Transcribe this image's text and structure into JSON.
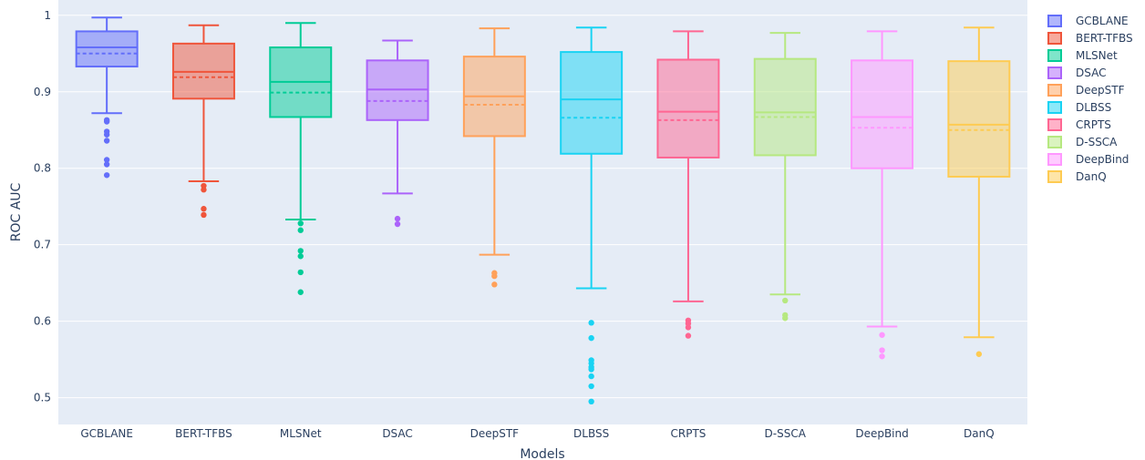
{
  "chart_data": {
    "type": "box",
    "xlabel": "Models",
    "ylabel": "ROC AUC",
    "ylim": [
      0.465,
      1.02
    ],
    "yticks": [
      0.5,
      0.6,
      0.7,
      0.8,
      0.9,
      1
    ],
    "ytick_labels": [
      "0.5",
      "0.6",
      "0.7",
      "0.8",
      "0.9",
      "1"
    ],
    "grid": true,
    "legend_position": "right",
    "mean_line": "dashed",
    "categories": [
      "GCBLANE",
      "BERT-TFBS",
      "MLSNet",
      "DSAC",
      "DeepSTF",
      "DLBSS",
      "CRPTS",
      "D-SSCA",
      "DeepBind",
      "DanQ"
    ],
    "series": [
      {
        "name": "GCBLANE",
        "color": "#636efa",
        "lowerfence": 0.872,
        "q1": 0.933,
        "median": 0.958,
        "mean": 0.95,
        "q3": 0.979,
        "upperfence": 0.997,
        "outliers": [
          0.863,
          0.861,
          0.848,
          0.844,
          0.836,
          0.811,
          0.805,
          0.791
        ]
      },
      {
        "name": "BERT-TFBS",
        "color": "#ef553b",
        "lowerfence": 0.783,
        "q1": 0.891,
        "median": 0.926,
        "mean": 0.919,
        "q3": 0.963,
        "upperfence": 0.987,
        "outliers": [
          0.777,
          0.772,
          0.747,
          0.739
        ]
      },
      {
        "name": "MLSNet",
        "color": "#00cc96",
        "lowerfence": 0.733,
        "q1": 0.867,
        "median": 0.913,
        "mean": 0.899,
        "q3": 0.958,
        "upperfence": 0.99,
        "outliers": [
          0.728,
          0.719,
          0.692,
          0.685,
          0.664,
          0.638
        ]
      },
      {
        "name": "DSAC",
        "color": "#ab63fa",
        "lowerfence": 0.767,
        "q1": 0.863,
        "median": 0.903,
        "mean": 0.888,
        "q3": 0.941,
        "upperfence": 0.967,
        "outliers": [
          0.734,
          0.727
        ]
      },
      {
        "name": "DeepSTF",
        "color": "#ffa15a",
        "lowerfence": 0.687,
        "q1": 0.842,
        "median": 0.894,
        "mean": 0.883,
        "q3": 0.946,
        "upperfence": 0.983,
        "outliers": [
          0.663,
          0.659,
          0.648
        ]
      },
      {
        "name": "DLBSS",
        "color": "#19d3f3",
        "lowerfence": 0.643,
        "q1": 0.819,
        "median": 0.89,
        "mean": 0.866,
        "q3": 0.952,
        "upperfence": 0.984,
        "outliers": [
          0.598,
          0.578,
          0.549,
          0.545,
          0.54,
          0.537,
          0.528,
          0.515,
          0.495
        ]
      },
      {
        "name": "CRPTS",
        "color": "#ff6692",
        "lowerfence": 0.626,
        "q1": 0.814,
        "median": 0.874,
        "mean": 0.863,
        "q3": 0.942,
        "upperfence": 0.979,
        "outliers": [
          0.601,
          0.597,
          0.592,
          0.581
        ]
      },
      {
        "name": "D-SSCA",
        "color": "#b6e880",
        "lowerfence": 0.635,
        "q1": 0.817,
        "median": 0.873,
        "mean": 0.867,
        "q3": 0.943,
        "upperfence": 0.977,
        "outliers": [
          0.627,
          0.608,
          0.604
        ]
      },
      {
        "name": "DeepBind",
        "color": "#ff97ff",
        "lowerfence": 0.593,
        "q1": 0.8,
        "median": 0.867,
        "mean": 0.853,
        "q3": 0.941,
        "upperfence": 0.979,
        "outliers": [
          0.582,
          0.562,
          0.554
        ]
      },
      {
        "name": "DanQ",
        "color": "#fecb52",
        "lowerfence": 0.579,
        "q1": 0.789,
        "median": 0.857,
        "mean": 0.85,
        "q3": 0.94,
        "upperfence": 0.984,
        "outliers": [
          0.557
        ]
      }
    ]
  }
}
